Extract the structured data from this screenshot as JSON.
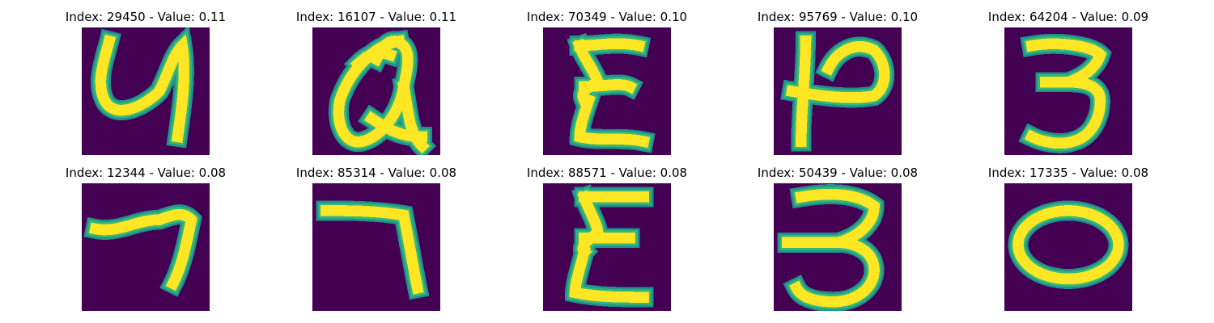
{
  "colors": {
    "background": "#440154",
    "stroke_outer": "#21918c",
    "stroke_mid": "#35b779",
    "stroke_core": "#fde725"
  },
  "panels": [
    {
      "title": "Index: 29450 - Value: 0.11",
      "index": 29450,
      "value": 0.11,
      "glyph": "4"
    },
    {
      "title": "Index: 16107 - Value: 0.11",
      "index": 16107,
      "value": 0.11,
      "glyph": "a"
    },
    {
      "title": "Index: 70349 - Value: 0.10",
      "index": 70349,
      "value": 0.1,
      "glyph": "3"
    },
    {
      "title": "Index: 95769 - Value: 0.10",
      "index": 95769,
      "value": 0.1,
      "glyph": "4"
    },
    {
      "title": "Index: 64204 - Value: 0.09",
      "index": 64204,
      "value": 0.09,
      "glyph": "3"
    },
    {
      "title": "Index: 12344 - Value: 0.08",
      "index": 12344,
      "value": 0.08,
      "glyph": "7"
    },
    {
      "title": "Index: 85314 - Value: 0.08",
      "index": 85314,
      "value": 0.08,
      "glyph": "7"
    },
    {
      "title": "Index: 88571 - Value: 0.08",
      "index": 88571,
      "value": 0.08,
      "glyph": "3"
    },
    {
      "title": "Index: 50439 - Value: 0.08",
      "index": 50439,
      "value": 0.08,
      "glyph": "3"
    },
    {
      "title": "Index: 17335 - Value: 0.08",
      "index": 17335,
      "value": 0.08,
      "glyph": "0"
    }
  ]
}
